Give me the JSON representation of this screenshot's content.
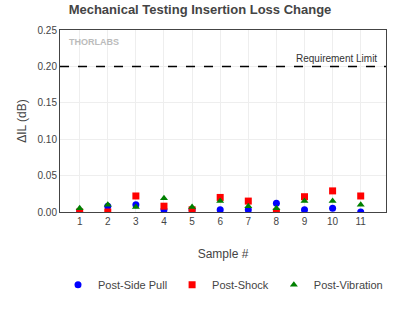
{
  "chart_data": {
    "type": "scatter",
    "title": "Mechanical Testing Insertion Loss Change",
    "x_label": "Sample #",
    "y_label": "ΔIL (dB)",
    "x": [
      1,
      2,
      3,
      4,
      5,
      6,
      7,
      8,
      9,
      10,
      11
    ],
    "series": [
      {
        "name": "Post-Side Pull",
        "color": "#0000FF",
        "marker": "circle",
        "values": [
          0.0,
          0.008,
          0.01,
          0.003,
          0.003,
          0.003,
          0.003,
          0.012,
          0.003,
          0.005,
          0.0
        ]
      },
      {
        "name": "Post-Shock",
        "color": "#FF0000",
        "marker": "square",
        "values": [
          0.0,
          0.0,
          0.022,
          0.008,
          0.003,
          0.02,
          0.015,
          0.0,
          0.021,
          0.029,
          0.022
        ]
      },
      {
        "name": "Post-Vibration",
        "color": "#008000",
        "marker": "triangle-up",
        "values": [
          0.005,
          0.01,
          0.007,
          0.019,
          0.007,
          0.015,
          0.008,
          0.005,
          0.015,
          0.015,
          0.01
        ]
      }
    ],
    "reference_lines": [
      {
        "y": 0.2,
        "label": "Requirement Limit",
        "color": "#000000",
        "line_style": "dashed"
      }
    ],
    "annotations": [
      "THORLABS"
    ],
    "xlim": [
      0.3,
      11.9
    ],
    "xticks": [
      1,
      2,
      3,
      4,
      5,
      6,
      7,
      8,
      9,
      10,
      11
    ],
    "ylim": [
      0.0,
      0.25
    ],
    "yticks": [
      {
        "value": 0.0,
        "label": "0.00"
      },
      0.05,
      {
        "value": 0.1,
        "label": "0.10"
      },
      0.15,
      {
        "value": 0.2,
        "label": "0.20"
      },
      0.25
    ],
    "grid": true,
    "legend": "bottom"
  }
}
